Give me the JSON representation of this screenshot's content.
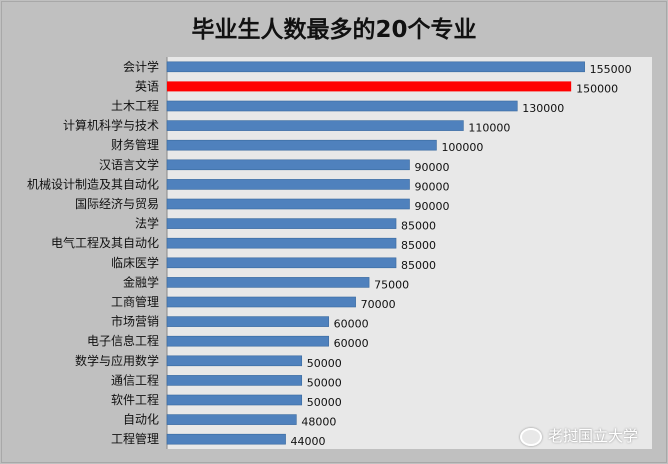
{
  "chart_data": {
    "type": "bar",
    "orientation": "horizontal",
    "title": "毕业生人数最多的20个专业",
    "categories": [
      "会计学",
      "英语",
      "土木工程",
      "计算机科学与技术",
      "财务管理",
      "汉语言文学",
      "机械设计制造及其自动化",
      "国际经济与贸易",
      "法学",
      "电气工程及其自动化",
      "临床医学",
      "金融学",
      "工商管理",
      "市场营销",
      "电子信息工程",
      "数学与应用数学",
      "通信工程",
      "软件工程",
      "自动化",
      "工程管理"
    ],
    "values": [
      155000,
      150000,
      130000,
      110000,
      100000,
      90000,
      90000,
      90000,
      85000,
      85000,
      85000,
      75000,
      70000,
      60000,
      60000,
      50000,
      50000,
      50000,
      48000,
      44000
    ],
    "highlight_index": 1,
    "xlim": [
      0,
      180000
    ],
    "grid": false,
    "data_labels": true,
    "colors": {
      "bar": "#4f81bd",
      "highlight": "#ff0000",
      "plot_bg": "#e8e8e8",
      "background": "#c0c0c0"
    }
  },
  "watermark": "老挝国立大学"
}
